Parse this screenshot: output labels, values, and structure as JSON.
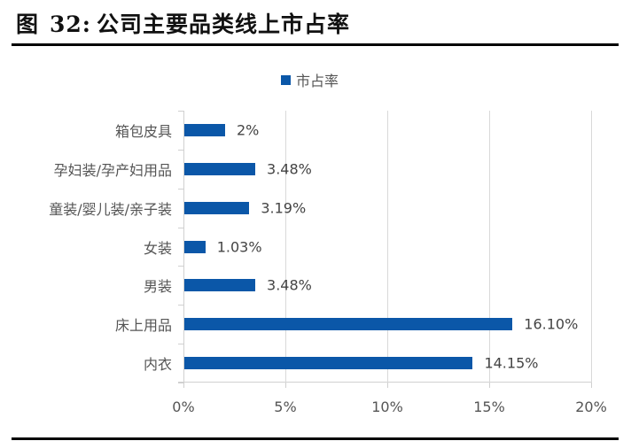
{
  "figure": {
    "prefix": "图",
    "number": "32:",
    "title": "公司主要品类线上市占率"
  },
  "legend": {
    "label": "市占率"
  },
  "colors": {
    "bar": "#0b57a8",
    "grid": "#d9d9d9",
    "text": "#555555"
  },
  "chart_data": {
    "type": "bar",
    "orientation": "horizontal",
    "title": "公司主要品类线上市占率",
    "xlabel": "",
    "ylabel": "",
    "categories": [
      "箱包皮具",
      "孕妇装/孕产妇用品",
      "童装/婴儿装/亲子装",
      "女装",
      "男装",
      "床上用品",
      "内衣"
    ],
    "values": [
      2,
      3.48,
      3.19,
      1.03,
      3.48,
      16.1,
      14.15
    ],
    "value_labels": [
      "2%",
      "3.48%",
      "3.19%",
      "1.03%",
      "3.48%",
      "16.10%",
      "14.15%"
    ],
    "series": [
      {
        "name": "市占率",
        "values": [
          2,
          3.48,
          3.19,
          1.03,
          3.48,
          16.1,
          14.15
        ]
      }
    ],
    "xlim": [
      0,
      20
    ],
    "x_ticks": [
      "0%",
      "5%",
      "10%",
      "15%",
      "20%"
    ],
    "grid": "vertical",
    "legend_position": "top"
  }
}
